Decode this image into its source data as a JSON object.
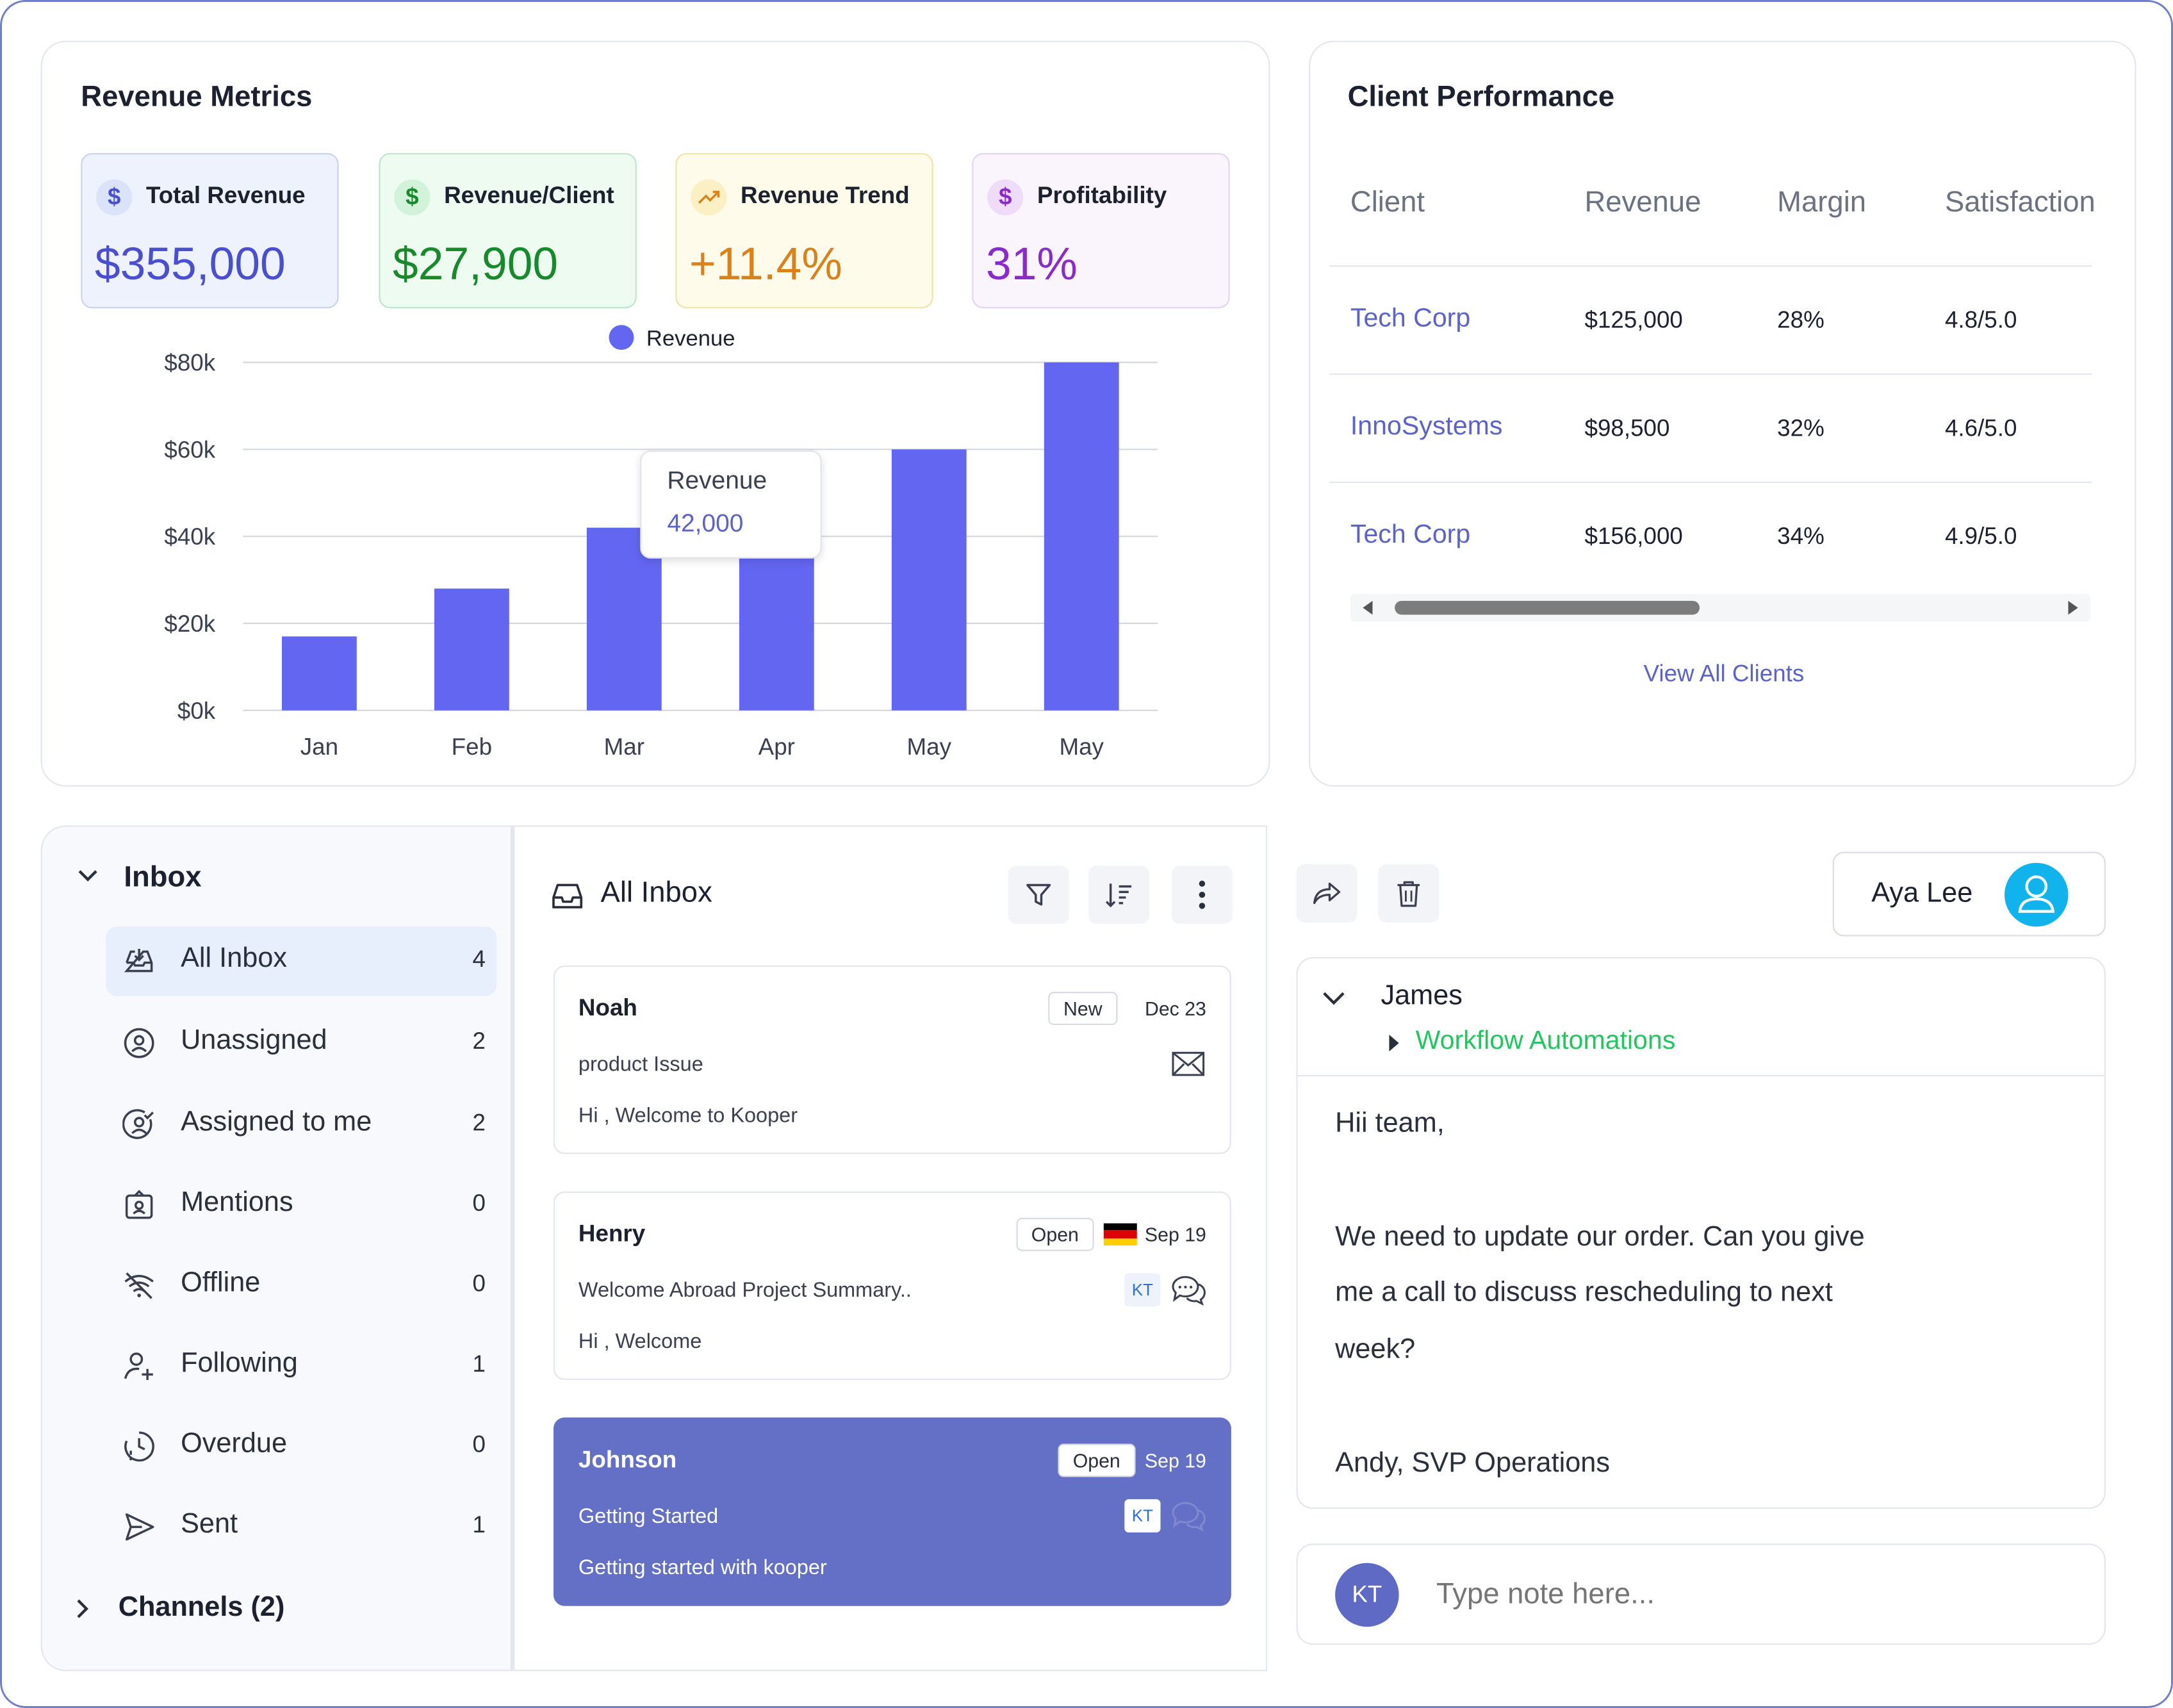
{
  "revenue_metrics": {
    "title": "Revenue Metrics",
    "kpis": [
      {
        "label": "Total Revenue",
        "value": "$355,000",
        "icon": "dollar-icon",
        "color": "#4a4fd1",
        "bg": "#eef2fc",
        "border": "#c8d3f0"
      },
      {
        "label": "Revenue/Client",
        "value": "$27,900",
        "icon": "dollar-icon",
        "color": "#188a2c",
        "bg": "#eefbf1",
        "border": "#bfe6c8"
      },
      {
        "label": "Revenue Trend",
        "value": "+11.4%",
        "icon": "trending-up-icon",
        "color": "#d9821c",
        "bg": "#fefbea",
        "border": "#f1e3a8"
      },
      {
        "label": "Profitability",
        "value": "31%",
        "icon": "dollar-icon",
        "color": "#8a2bc9",
        "bg": "#faf5fd",
        "border": "#e6d3f1"
      }
    ],
    "chart_data": {
      "type": "bar",
      "categories": [
        "Jan",
        "Feb",
        "Mar",
        "Apr",
        "May",
        "May"
      ],
      "series": [
        {
          "name": "Revenue",
          "values": [
            17000,
            28000,
            42000,
            42000,
            60000,
            80000
          ],
          "color": "#6366f1"
        }
      ],
      "y_ticks": [
        "$0k",
        "$20k",
        "$40k",
        "$60k",
        "$80k"
      ],
      "ylim": [
        0,
        80000
      ],
      "grid": true,
      "legend": "top-center",
      "tooltip": {
        "label": "Revenue",
        "value": "42,000"
      }
    }
  },
  "client_performance": {
    "title": "Client Performance",
    "columns": [
      "Client",
      "Revenue",
      "Margin",
      "Satisfaction"
    ],
    "rows": [
      {
        "client": "Tech Corp",
        "revenue": "$125,000",
        "margin": "28%",
        "satisfaction": "4.8/5.0"
      },
      {
        "client": "InnoSystems",
        "revenue": "$98,500",
        "margin": "32%",
        "satisfaction": "4.6/5.0"
      },
      {
        "client": "Tech Corp",
        "revenue": "$156,000",
        "margin": "34%",
        "satisfaction": "4.9/5.0"
      }
    ],
    "view_all": "View All Clients",
    "accent": "#5b63c9"
  },
  "inbox_sidebar": {
    "title": "Inbox",
    "items": [
      {
        "label": "All Inbox",
        "count": "4",
        "icon": "inbox-download-icon"
      },
      {
        "label": "Unassigned",
        "count": "2",
        "icon": "user-circle-icon"
      },
      {
        "label": "Assigned to me",
        "count": "2",
        "icon": "user-check-circle-icon"
      },
      {
        "label": "Mentions",
        "count": "0",
        "icon": "mention-badge-icon"
      },
      {
        "label": "Offline",
        "count": "0",
        "icon": "wifi-off-icon"
      },
      {
        "label": "Following",
        "count": "1",
        "icon": "user-plus-icon"
      },
      {
        "label": "Overdue",
        "count": "0",
        "icon": "clock-alert-icon"
      },
      {
        "label": "Sent",
        "count": "1",
        "icon": "send-icon"
      }
    ],
    "channels": "Channels (2)"
  },
  "message_list": {
    "title": "All Inbox",
    "messages": [
      {
        "name": "Noah",
        "badge": "New",
        "date": "Dec 23",
        "subject": "product Issue",
        "preview": "Hi , Welcome to Kooper",
        "channel_icon": "mail-icon"
      },
      {
        "name": "Henry",
        "badge": "Open",
        "date": "Sep 19",
        "subject": "Welcome Abroad Project Summary..",
        "preview": "Hi , Welcome",
        "tag": "KT",
        "channel_icon": "chat-bubbles-icon",
        "flag_icon": "germany-flag-icon"
      },
      {
        "name": "Johnson",
        "badge": "Open",
        "date": "Sep 19",
        "subject": "Getting Started",
        "preview": "Getting started with kooper",
        "tag": "KT",
        "channel_icon": "chat-bubbles-icon"
      }
    ],
    "selected_color": "#6470c6"
  },
  "conversation": {
    "assignee": "Aya Lee",
    "sender": "James",
    "workflow": "Workflow Automations",
    "workflow_color": "#22c55e",
    "body": {
      "greeting": "Hii team,",
      "line1": "We need to update our order. Can you give",
      "line2": "me a call to discuss rescheduling to next",
      "line3": "week?",
      "signature": "Andy, SVP Operations"
    },
    "note_avatar": "KT",
    "note_placeholder": "Type note here..."
  }
}
